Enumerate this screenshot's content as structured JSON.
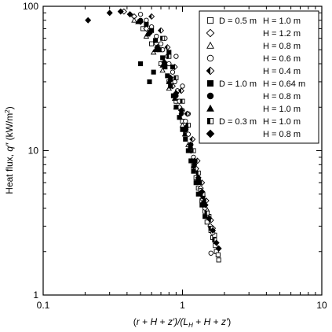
{
  "chart_data": {
    "type": "scatter",
    "xlabel_parts": {
      "open": "(",
      "r": "r",
      "plus1": " + ",
      "H1": "H",
      "plus2": " + ",
      "z1": "z′)/(",
      "L": "L",
      "Lsub": "H",
      "plus3": " + ",
      "H2": "H",
      "plus4": " + ",
      "z2": "z′",
      "close": ")"
    },
    "ylabel_parts": {
      "main": "Heat flux, ",
      "q": "q″",
      "unit_open": " (kW/m",
      "unit_sup": "2",
      "unit_close": ")"
    },
    "x_scale": "log",
    "y_scale": "log",
    "xlim": [
      0.1,
      10
    ],
    "ylim": [
      1,
      100
    ],
    "x_ticks": [
      {
        "value": 0.1,
        "label": "0.1"
      },
      {
        "value": 1,
        "label": "1"
      },
      {
        "value": 10,
        "label": "10"
      }
    ],
    "y_ticks": [
      {
        "value": 1,
        "label": "1"
      },
      {
        "value": 10,
        "label": "10"
      },
      {
        "value": 100,
        "label": "100"
      }
    ],
    "grid": false,
    "legend_position": "top-right",
    "series": [
      {
        "D": "D = 0.5 m",
        "H": "H = 1.0 m",
        "marker": "square-open",
        "points": [
          [
            0.52,
            70
          ],
          [
            0.6,
            55
          ],
          [
            0.7,
            40
          ],
          [
            0.8,
            30
          ],
          [
            0.9,
            22
          ],
          [
            1.0,
            16
          ],
          [
            1.05,
            13
          ],
          [
            1.12,
            10
          ],
          [
            1.2,
            8
          ],
          [
            1.25,
            6.5
          ],
          [
            1.3,
            5.5
          ],
          [
            1.38,
            4.5
          ],
          [
            1.45,
            3.8
          ],
          [
            1.5,
            3.2
          ],
          [
            1.6,
            2.8
          ],
          [
            1.65,
            2.5
          ],
          [
            1.72,
            2.2
          ],
          [
            1.75,
            2.0
          ],
          [
            1.8,
            1.9
          ],
          [
            1.82,
            1.75
          ],
          [
            1.7,
            2.6
          ],
          [
            1.55,
            3.5
          ]
        ]
      },
      {
        "D": "",
        "H": "H = 1.2 m",
        "marker": "diamond-open",
        "points": [
          [
            0.38,
            92
          ],
          [
            0.45,
            85
          ],
          [
            0.55,
            70
          ],
          [
            0.65,
            55
          ],
          [
            0.75,
            40
          ],
          [
            0.85,
            28
          ],
          [
            0.95,
            20
          ],
          [
            1.05,
            14
          ],
          [
            1.15,
            10
          ],
          [
            1.25,
            7.5
          ],
          [
            1.35,
            5.5
          ],
          [
            1.45,
            4.2
          ],
          [
            1.55,
            3.4
          ],
          [
            1.65,
            2.9
          ]
        ]
      },
      {
        "D": "",
        "H": "H = 0.8 m",
        "marker": "triangle-open",
        "points": [
          [
            0.45,
            80
          ],
          [
            0.55,
            62
          ],
          [
            0.62,
            48
          ],
          [
            0.72,
            36
          ],
          [
            0.8,
            27
          ],
          [
            0.9,
            20
          ],
          [
            1.0,
            15
          ],
          [
            1.1,
            11
          ],
          [
            1.2,
            8.5
          ],
          [
            1.3,
            6.5
          ],
          [
            1.4,
            5.0
          ],
          [
            1.5,
            3.9
          ]
        ]
      },
      {
        "D": "",
        "H": "H = 0.6 m",
        "marker": "circle-open",
        "points": [
          [
            0.5,
            88
          ],
          [
            0.55,
            80
          ],
          [
            0.6,
            72
          ],
          [
            0.65,
            62
          ],
          [
            0.7,
            55
          ],
          [
            0.72,
            50
          ],
          [
            0.78,
            45
          ],
          [
            0.8,
            40
          ],
          [
            0.85,
            35
          ],
          [
            0.88,
            30
          ],
          [
            0.92,
            26
          ],
          [
            0.95,
            22
          ],
          [
            1.0,
            19
          ],
          [
            1.05,
            16
          ],
          [
            1.1,
            13
          ],
          [
            1.15,
            11
          ],
          [
            1.2,
            9
          ],
          [
            1.25,
            7.5
          ],
          [
            1.3,
            6.2
          ],
          [
            1.35,
            5.3
          ],
          [
            1.4,
            4.6
          ],
          [
            1.45,
            4.0
          ],
          [
            1.5,
            3.5
          ],
          [
            1.58,
            3.0
          ],
          [
            1.65,
            2.7
          ],
          [
            1.6,
            1.95
          ],
          [
            0.9,
            45
          ],
          [
            0.75,
            60
          ],
          [
            1.0,
            28
          ],
          [
            1.1,
            18
          ]
        ]
      },
      {
        "D": "",
        "H": "H = 0.4 m",
        "marker": "diamond-half",
        "points": [
          [
            0.6,
            85
          ],
          [
            0.7,
            68
          ],
          [
            0.78,
            52
          ],
          [
            0.88,
            38
          ],
          [
            0.98,
            26
          ],
          [
            1.08,
            18
          ],
          [
            1.18,
            12
          ],
          [
            1.28,
            8.5
          ],
          [
            1.38,
            6.0
          ],
          [
            1.48,
            4.5
          ],
          [
            1.6,
            3.3
          ]
        ]
      },
      {
        "D": "D = 1.0 m",
        "H": "H = 0.64 m",
        "marker": "square-filled",
        "points": [
          [
            0.55,
            75
          ],
          [
            0.6,
            68
          ],
          [
            0.64,
            58
          ],
          [
            0.68,
            50
          ],
          [
            0.72,
            44
          ],
          [
            0.75,
            38
          ],
          [
            0.78,
            33
          ],
          [
            0.82,
            28
          ],
          [
            0.86,
            24
          ],
          [
            0.9,
            20
          ],
          [
            0.95,
            17
          ],
          [
            1.0,
            14
          ],
          [
            1.05,
            12
          ],
          [
            1.1,
            10
          ],
          [
            1.15,
            8.5
          ],
          [
            1.2,
            7.2
          ],
          [
            1.25,
            6.0
          ],
          [
            1.3,
            5.0
          ],
          [
            1.38,
            4.2
          ],
          [
            1.45,
            3.5
          ],
          [
            0.5,
            40
          ],
          [
            0.58,
            30
          ],
          [
            0.62,
            35
          ],
          [
            0.8,
            48
          ],
          [
            0.85,
            38
          ]
        ]
      },
      {
        "D": "",
        "H": "H = 0.8 m",
        "marker": "circle-filled",
        "points": [
          [
            0.5,
            80
          ],
          [
            0.58,
            66
          ],
          [
            0.66,
            52
          ],
          [
            0.74,
            40
          ],
          [
            0.82,
            31
          ],
          [
            0.9,
            24
          ],
          [
            0.98,
            18
          ],
          [
            1.06,
            14
          ],
          [
            1.14,
            10.5
          ],
          [
            1.22,
            8
          ],
          [
            1.3,
            6.2
          ],
          [
            1.4,
            4.8
          ]
        ]
      },
      {
        "D": "",
        "H": "H = 1.0 m",
        "marker": "triangle-filled",
        "points": [
          [
            0.48,
            78
          ],
          [
            0.56,
            64
          ],
          [
            0.64,
            50
          ],
          [
            0.72,
            39
          ],
          [
            0.8,
            30
          ],
          [
            0.88,
            23
          ],
          [
            0.96,
            17
          ],
          [
            1.04,
            13
          ],
          [
            1.12,
            10
          ],
          [
            1.2,
            7.8
          ],
          [
            1.3,
            6.0
          ],
          [
            1.42,
            4.5
          ]
        ]
      },
      {
        "D": "D = 0.3 m",
        "H": "H = 1.0 m",
        "marker": "square-half",
        "points": [
          [
            0.72,
            60
          ],
          [
            0.8,
            45
          ],
          [
            0.9,
            32
          ],
          [
            1.0,
            22
          ],
          [
            1.1,
            15
          ],
          [
            1.2,
            10
          ],
          [
            1.3,
            7
          ],
          [
            1.4,
            5
          ],
          [
            1.5,
            3.7
          ],
          [
            1.6,
            2.9
          ],
          [
            1.7,
            2.4
          ]
        ]
      },
      {
        "D": "",
        "H": "H = 0.8 m",
        "marker": "diamond-filled",
        "points": [
          [
            0.21,
            80
          ],
          [
            0.3,
            90
          ],
          [
            0.36,
            92
          ],
          [
            0.42,
            88
          ],
          [
            0.5,
            78
          ],
          [
            0.58,
            65
          ],
          [
            0.66,
            52
          ],
          [
            0.74,
            41
          ],
          [
            0.82,
            32
          ],
          [
            0.9,
            25
          ],
          [
            0.98,
            19
          ],
          [
            1.06,
            14.5
          ],
          [
            1.14,
            11
          ],
          [
            1.22,
            8.5
          ],
          [
            1.3,
            6.5
          ],
          [
            1.38,
            5.2
          ],
          [
            1.46,
            4.2
          ],
          [
            1.55,
            3.4
          ],
          [
            1.65,
            2.8
          ],
          [
            1.75,
            2.3
          ],
          [
            1.82,
            2.1
          ]
        ]
      }
    ]
  }
}
